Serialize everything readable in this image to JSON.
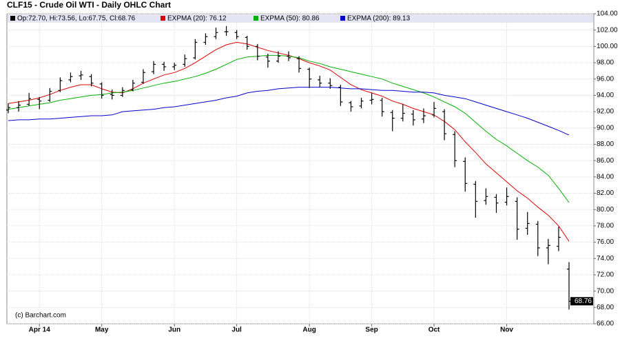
{
  "chart_data": {
    "type": "ohlc",
    "title": "CLF15 - Crude Oil WTI - Daily OHLC Chart",
    "credit": "(c) Barchart.com",
    "categories": [
      null,
      null,
      null,
      "Apr 14",
      null,
      null,
      null,
      null,
      null,
      "May",
      null,
      null,
      null,
      null,
      null,
      null,
      "Jun",
      null,
      null,
      null,
      null,
      null,
      "Jul",
      null,
      null,
      null,
      null,
      null,
      null,
      "Aug",
      null,
      null,
      null,
      null,
      null,
      "Sep",
      null,
      null,
      null,
      null,
      null,
      "Oct",
      null,
      null,
      null,
      null,
      null,
      null,
      "Nov",
      null,
      null,
      null,
      null,
      null,
      null
    ],
    "ylim": [
      66,
      104
    ],
    "yticks": [
      {
        "value": 66,
        "label": "66.00"
      },
      {
        "value": 68,
        "label": "68.00"
      },
      {
        "value": 70,
        "label": "70.00"
      },
      {
        "value": 72,
        "label": "72.00"
      },
      {
        "value": 74,
        "label": "74.00"
      },
      {
        "value": 76,
        "label": "76.00"
      },
      {
        "value": 78,
        "label": "78.00"
      },
      {
        "value": 80,
        "label": "80.00"
      },
      {
        "value": 82,
        "label": "82.00"
      },
      {
        "value": 84,
        "label": "84.00"
      },
      {
        "value": 86,
        "label": "86.00"
      },
      {
        "value": 88,
        "label": "88.00"
      },
      {
        "value": 90,
        "label": "90.00"
      },
      {
        "value": 92,
        "label": "92.00"
      },
      {
        "value": 94,
        "label": "94.00"
      },
      {
        "value": 96,
        "label": "96.00"
      },
      {
        "value": 98,
        "label": "98.00"
      },
      {
        "value": 100,
        "label": "100.00"
      },
      {
        "value": 102,
        "label": "102.00"
      },
      {
        "value": 104,
        "label": "104.00"
      }
    ],
    "grid": true,
    "series": [
      {
        "name": "Op:72.70, Hi:73.56, Lo:67.75, Cl:68.76",
        "type": "ohlc",
        "color": "#000000",
        "values": [
          [
            92.2,
            93.0,
            91.8,
            92.5
          ],
          [
            92.5,
            93.3,
            92.0,
            92.8
          ],
          [
            92.9,
            94.3,
            92.7,
            93.6
          ],
          [
            93.5,
            93.8,
            92.3,
            93.3
          ],
          [
            93.4,
            94.9,
            93.2,
            94.5
          ],
          [
            94.6,
            96.2,
            94.4,
            95.8
          ],
          [
            95.9,
            96.8,
            95.6,
            96.3
          ],
          [
            96.4,
            97.0,
            95.9,
            96.5
          ],
          [
            96.3,
            96.6,
            95.1,
            95.5
          ],
          [
            95.4,
            95.6,
            93.6,
            94.0
          ],
          [
            94.1,
            94.7,
            93.5,
            94.0
          ],
          [
            94.0,
            95.0,
            93.8,
            94.6
          ],
          [
            94.7,
            95.9,
            94.5,
            95.5
          ],
          [
            95.6,
            97.2,
            95.4,
            96.8
          ],
          [
            96.9,
            98.2,
            96.6,
            97.8
          ],
          [
            97.8,
            98.1,
            97.0,
            97.5
          ],
          [
            97.5,
            98.0,
            97.1,
            97.7
          ],
          [
            97.8,
            99.0,
            97.5,
            98.5
          ],
          [
            98.6,
            100.9,
            98.4,
            100.5
          ],
          [
            100.5,
            101.6,
            100.2,
            101.2
          ],
          [
            101.2,
            102.3,
            100.9,
            101.7
          ],
          [
            101.8,
            102.5,
            101.3,
            101.8
          ],
          [
            101.7,
            102.0,
            100.9,
            101.2
          ],
          [
            101.1,
            101.3,
            99.6,
            100.0
          ],
          [
            100.0,
            100.3,
            98.3,
            98.8
          ],
          [
            98.7,
            99.1,
            97.4,
            98.2
          ],
          [
            98.2,
            99.4,
            98.0,
            98.8
          ],
          [
            98.8,
            99.4,
            98.2,
            98.6
          ],
          [
            98.5,
            98.8,
            96.8,
            97.3
          ],
          [
            97.2,
            97.4,
            94.9,
            96.0
          ],
          [
            95.9,
            96.4,
            95.0,
            95.5
          ],
          [
            95.5,
            96.1,
            94.8,
            95.2
          ],
          [
            95.0,
            95.3,
            92.7,
            93.2
          ],
          [
            93.1,
            93.3,
            92.0,
            92.6
          ],
          [
            92.7,
            93.7,
            92.4,
            93.3
          ],
          [
            93.4,
            94.3,
            92.9,
            93.5
          ],
          [
            93.4,
            93.7,
            91.4,
            92.0
          ],
          [
            91.9,
            92.2,
            89.6,
            91.2
          ],
          [
            91.2,
            92.9,
            90.8,
            91.8
          ],
          [
            91.7,
            92.2,
            90.3,
            91.0
          ],
          [
            91.1,
            92.4,
            90.6,
            91.5
          ],
          [
            91.6,
            93.2,
            91.3,
            92.4
          ],
          [
            92.0,
            92.3,
            88.5,
            89.3
          ],
          [
            89.2,
            89.6,
            85.2,
            86.0
          ],
          [
            85.9,
            86.4,
            82.2,
            83.2
          ],
          [
            83.1,
            83.5,
            79.0,
            81.0
          ],
          [
            81.1,
            82.6,
            80.6,
            81.6
          ],
          [
            81.5,
            81.9,
            79.6,
            80.8
          ],
          [
            80.9,
            82.7,
            80.5,
            81.6
          ],
          [
            81.0,
            81.5,
            76.3,
            77.6
          ],
          [
            77.7,
            79.7,
            76.9,
            78.3
          ],
          [
            78.2,
            78.6,
            74.3,
            75.3
          ],
          [
            75.3,
            76.4,
            73.3,
            75.6
          ],
          [
            75.5,
            77.9,
            74.9,
            76.6
          ],
          [
            72.7,
            73.56,
            67.75,
            68.76
          ]
        ]
      },
      {
        "name": "EXPMA (20): 76.12",
        "type": "line",
        "color": "#e00000",
        "values": [
          93.0,
          93.2,
          93.4,
          93.7,
          94.1,
          94.6,
          95.0,
          95.3,
          95.3,
          94.8,
          94.4,
          94.3,
          94.8,
          95.5,
          96.0,
          96.5,
          96.8,
          97.3,
          98.0,
          98.8,
          99.6,
          100.2,
          100.5,
          100.3,
          99.9,
          99.5,
          99.2,
          98.9,
          98.5,
          98.0,
          97.6,
          97.1,
          96.2,
          95.3,
          94.7,
          94.3,
          93.9,
          93.3,
          92.9,
          92.4,
          92.0,
          91.6,
          90.8,
          89.8,
          88.3,
          87.0,
          85.6,
          84.5,
          83.4,
          82.3,
          81.4,
          80.3,
          79.3,
          78.0,
          76.12
        ]
      },
      {
        "name": "EXPMA (50): 80.86",
        "type": "line",
        "color": "#00b000",
        "values": [
          92.3,
          92.5,
          92.7,
          92.9,
          93.1,
          93.4,
          93.6,
          93.8,
          94.0,
          94.1,
          94.3,
          94.4,
          94.6,
          94.9,
          95.2,
          95.5,
          95.7,
          96.0,
          96.3,
          96.7,
          97.2,
          97.8,
          98.4,
          98.7,
          98.8,
          98.9,
          98.9,
          98.8,
          98.6,
          98.2,
          97.9,
          97.5,
          97.2,
          96.9,
          96.6,
          96.3,
          96.0,
          95.5,
          95.1,
          94.7,
          94.3,
          93.8,
          93.2,
          92.6,
          91.8,
          90.7,
          89.6,
          88.6,
          87.8,
          86.9,
          86.0,
          85.2,
          84.2,
          82.6,
          80.86
        ]
      },
      {
        "name": "EXPMA (200): 89.13",
        "type": "line",
        "color": "#0000d0",
        "values": [
          90.9,
          91.0,
          91.0,
          91.1,
          91.1,
          91.2,
          91.3,
          91.4,
          91.5,
          91.5,
          91.6,
          92.0,
          92.1,
          92.2,
          92.3,
          92.5,
          92.6,
          92.8,
          93.0,
          93.2,
          93.4,
          93.7,
          93.9,
          94.3,
          94.5,
          94.6,
          94.8,
          94.9,
          95.0,
          95.0,
          95.0,
          95.0,
          94.9,
          94.8,
          94.8,
          94.7,
          94.6,
          94.6,
          94.5,
          94.4,
          94.4,
          94.3,
          94.0,
          93.8,
          93.6,
          93.2,
          92.8,
          92.4,
          92.0,
          91.6,
          91.2,
          90.7,
          90.2,
          89.7,
          89.13
        ]
      }
    ]
  }
}
